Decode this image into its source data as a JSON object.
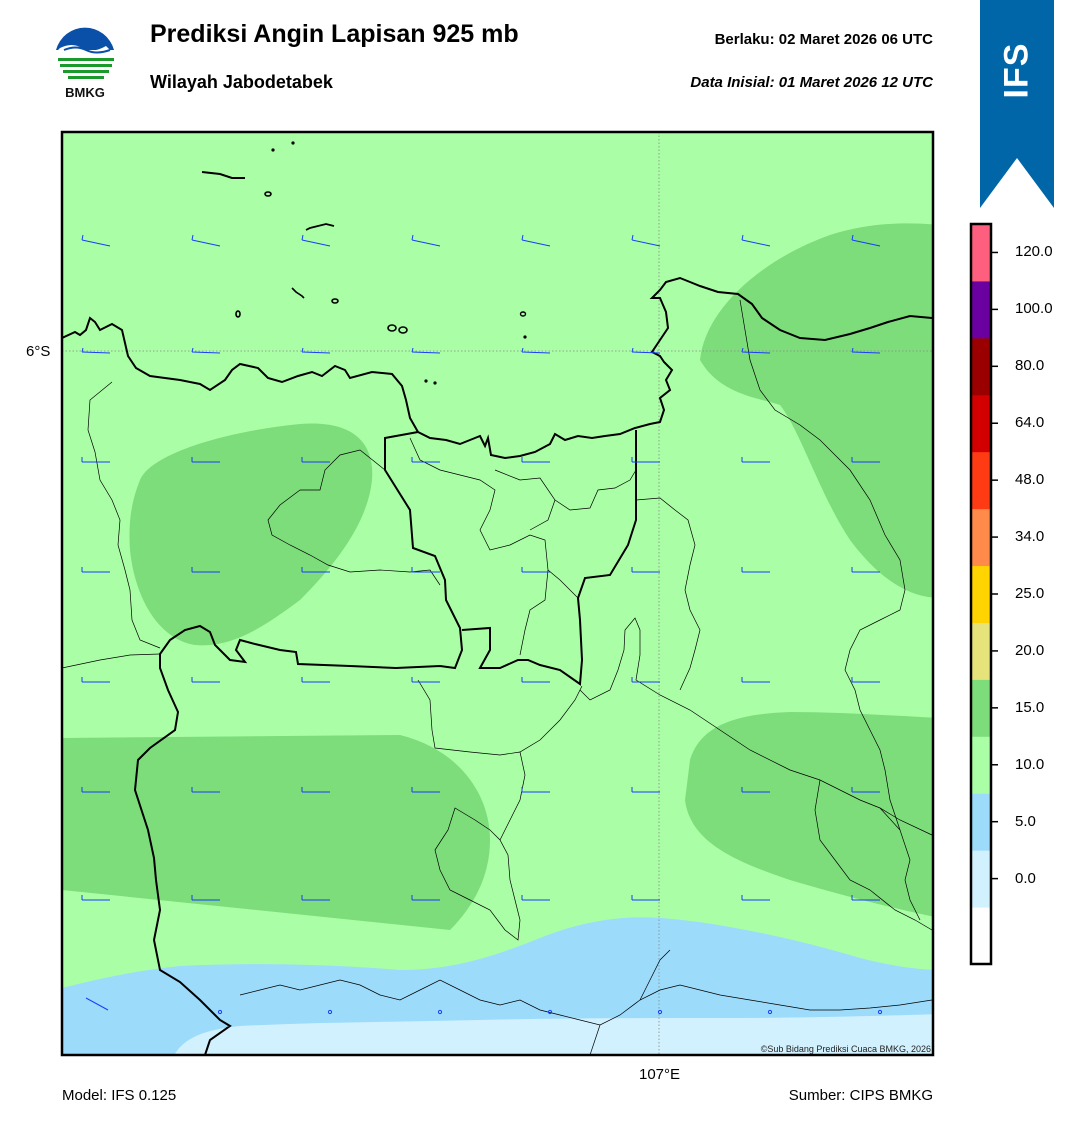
{
  "header": {
    "title": "Prediksi Angin Lapisan 925 mb",
    "subtitle": "Wilayah Jabodetabek",
    "valid_label": "Berlaku:  02 Maret 2026 06 UTC",
    "initial_label": "Data Inisial:  01 Maret 2026 12 UTC"
  },
  "logo": {
    "text": "BMKG",
    "icon": "bmkg-logo-icon"
  },
  "banner": {
    "text": "IFS",
    "color": "#0066a8"
  },
  "map": {
    "lat_label": "6°S",
    "lon_label": "107°E",
    "copyright": "©Sub Bidang Prediksi Cuaca BMKG, 2026",
    "colors": {
      "c10_15": "#aaffa6",
      "c15_20": "#7ddd7b",
      "c5_10": "#9ddbfb",
      "c0_5": "#d2f1ff",
      "barb": "#1a3cff"
    }
  },
  "colorbar": {
    "ticks": [
      "120.0",
      "100.0",
      "80.0",
      "64.0",
      "48.0",
      "34.0",
      "25.0",
      "20.0",
      "15.0",
      "10.0",
      "5.0",
      "0.0"
    ],
    "colors": [
      "#fffefe",
      "#d2f1ff",
      "#9ddbfb",
      "#aaffa6",
      "#7ddd7b",
      "#e6e37a",
      "#ffd400",
      "#ff8a4a",
      "#ff3b14",
      "#d20000",
      "#9b0000",
      "#6a00a0",
      "#ff5f7e"
    ]
  },
  "footer": {
    "model": "Model: IFS 0.125",
    "source": "Sumber: CIPS BMKG"
  }
}
